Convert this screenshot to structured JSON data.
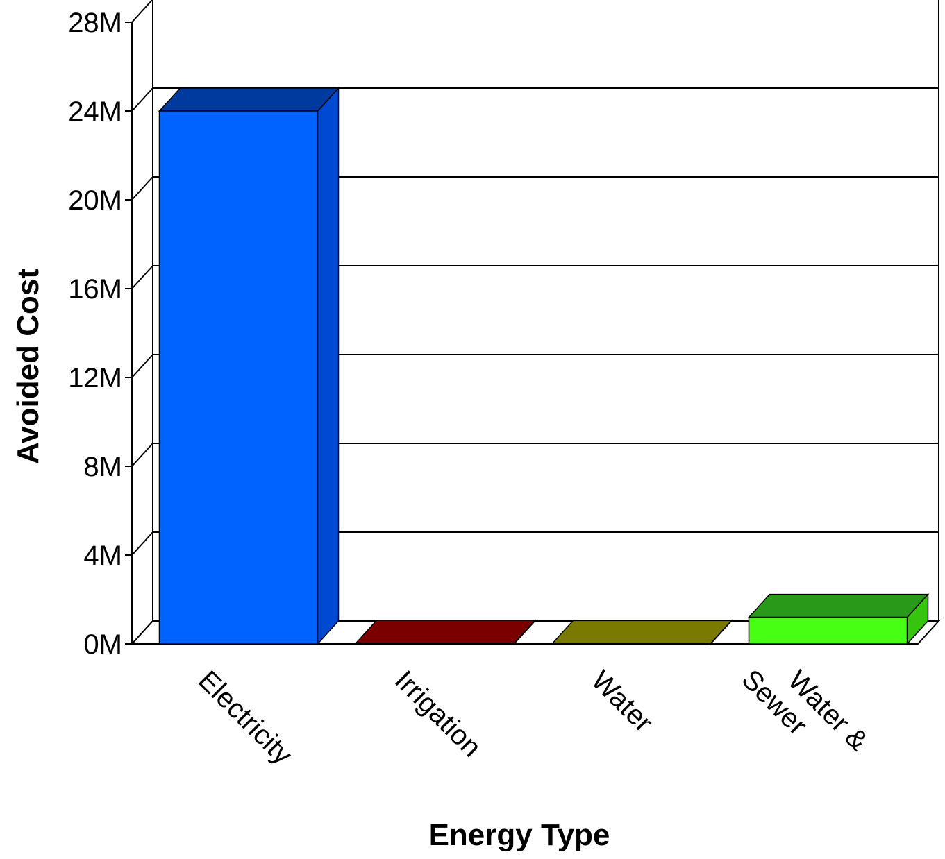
{
  "chart_data": {
    "type": "bar",
    "title": "",
    "xlabel": "Energy Type",
    "ylabel": "Avoided Cost",
    "categories": [
      {
        "label": "Electricity",
        "lines": [
          "Electricity"
        ]
      },
      {
        "label": "Irrigation",
        "lines": [
          "Irrigation"
        ]
      },
      {
        "label": "Water",
        "lines": [
          "Water"
        ]
      },
      {
        "label": "Water & Sewer",
        "lines": [
          "Water &",
          "Sewer"
        ]
      }
    ],
    "values": [
      24000000,
      30000,
      20000,
      1200000
    ],
    "ylim": [
      0,
      28000000
    ],
    "yticks": [
      0,
      4000000,
      8000000,
      12000000,
      16000000,
      20000000,
      24000000,
      28000000
    ],
    "ytick_labels": [
      "0M",
      "4M",
      "8M",
      "12M",
      "16M",
      "20M",
      "24M",
      "28M"
    ],
    "grid": true,
    "style": "3d",
    "colors": {
      "front": [
        "#0062ff",
        "#9b0000",
        "#9b9b00",
        "#46ff12"
      ],
      "top": [
        "#003a9e",
        "#7a0000",
        "#7a7a00",
        "#29991a"
      ],
      "side": [
        "#004ad3",
        "#6a0000",
        "#6a6a00",
        "#36c40e"
      ]
    }
  }
}
